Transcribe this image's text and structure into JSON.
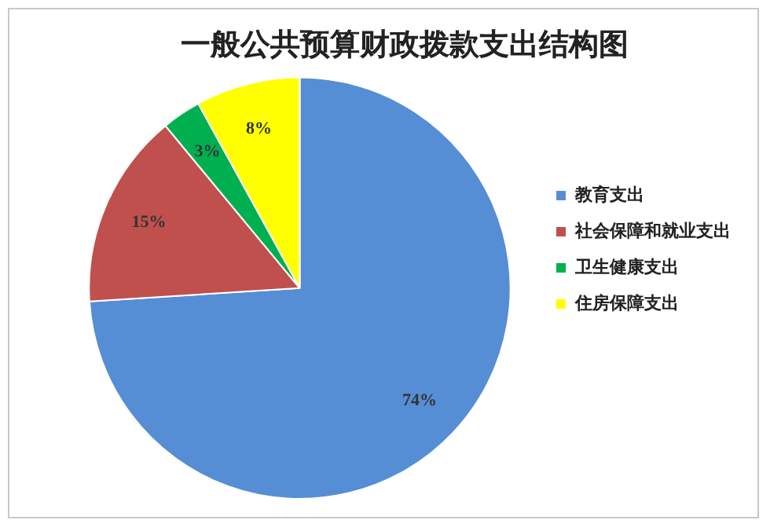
{
  "chart_data": {
    "type": "pie",
    "title": "一般公共预算财政拨款支出结构图",
    "categories": [
      "教育支出",
      "社会保障和就业支出",
      "卫生健康支出",
      "住房保障支出"
    ],
    "values": [
      74,
      15,
      3,
      8
    ],
    "colors": [
      "#558ed5",
      "#c0504d",
      "#00b050",
      "#ffff00"
    ],
    "value_labels": [
      "74%",
      "15%",
      "3%",
      "8%"
    ],
    "legend": "right"
  }
}
